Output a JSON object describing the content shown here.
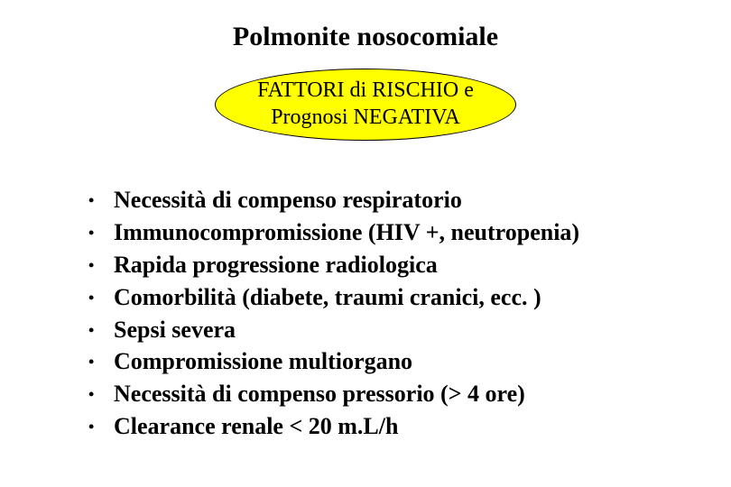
{
  "slide": {
    "title": "Polmonite nosocomiale",
    "subtitle_line1": "FATTORI di RISCHIO e",
    "subtitle_line2": "Prognosi NEGATIVA",
    "bullets": [
      "Necessità di compenso respiratorio",
      "Immunocompromissione (HIV +, neutropenia)",
      "Rapida progressione radiologica",
      "Comorbilità (diabete, traumi cranici, ecc. )",
      "Sepsi severa",
      "Compromissione multiorgano",
      "Necessità di compenso pressorio (> 4 ore)",
      "Clearance renale < 20 m.L/h"
    ],
    "colors": {
      "background": "#ffffff",
      "text": "#000000",
      "pill_fill": "#ffff00",
      "pill_border": "#000000"
    },
    "typography": {
      "title_font": "Comic Sans MS",
      "body_font": "Times New Roman",
      "title_size_pt": 24,
      "subtitle_size_pt": 18,
      "bullet_size_pt": 20,
      "bullet_weight": "bold"
    }
  }
}
